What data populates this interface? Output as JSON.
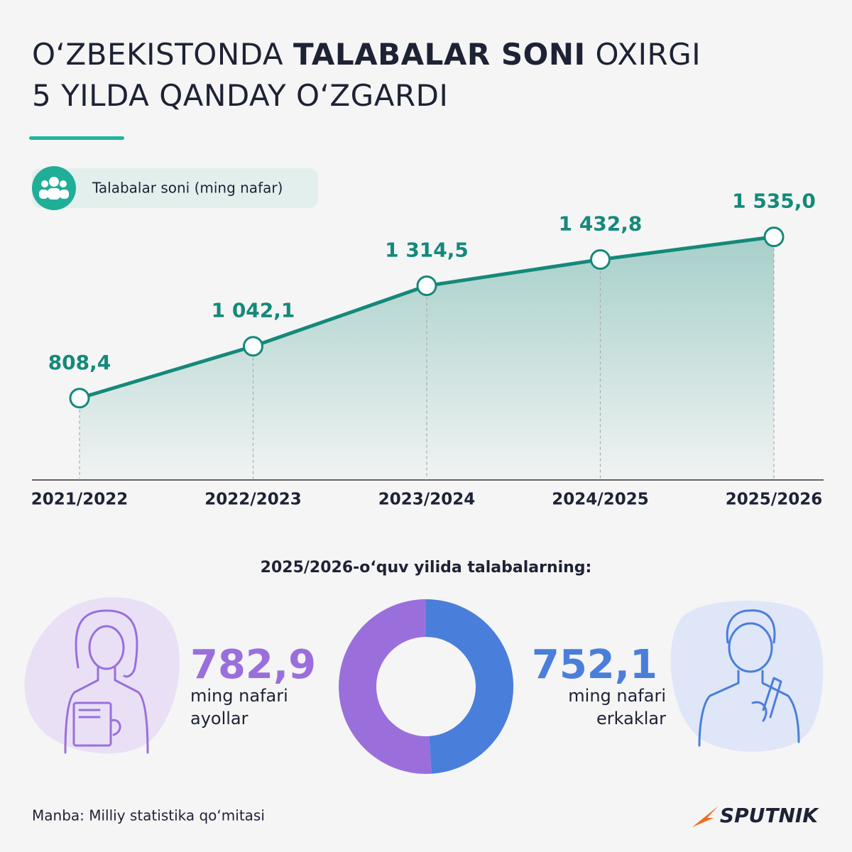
{
  "header": {
    "title": [
      "O‘ZBEKISTONDA",
      "TALABALAR SONI",
      "OXIRGI",
      "5 YILDA QANDAY O‘ZGARDI"
    ]
  },
  "chart_data": [
    {
      "type": "line",
      "categories": [
        "2021/2022",
        "2022/2023",
        "2023/2024",
        "2024/2025",
        "2025/2026"
      ],
      "series": [
        {
          "name": "Talabalar soni (ming nafar)",
          "color": "#14897a",
          "values": [
            808.4,
            1042.1,
            1314.5,
            1432.8,
            1535.0
          ],
          "value_labels": [
            "808,4",
            "1 042,1",
            "1 314,5",
            "1 432,8",
            "1 535,0"
          ]
        }
      ],
      "ylim": [
        440,
        1700
      ]
    },
    {
      "type": "pie",
      "title": "2025/2026-o‘quv yilida talabalarning:",
      "categories": [
        "ayollar",
        "erkaklar"
      ],
      "unit": "ming nafari",
      "values": [
        782.9,
        752.1
      ],
      "value_labels": [
        "782,9",
        "752,1"
      ],
      "colors": [
        "#9a6fdc",
        "#4a7edb"
      ]
    }
  ],
  "footer": {
    "source": "Manba: Milliy statistika qo‘mitasi",
    "logo": "SPUTNIK"
  }
}
